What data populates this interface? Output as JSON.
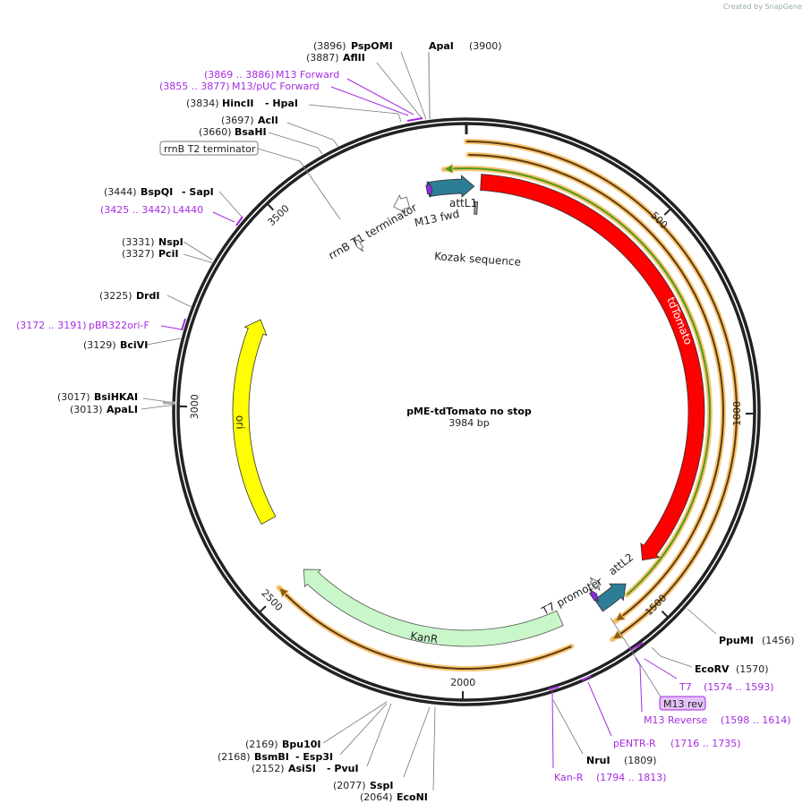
{
  "credit": "Created by SnapGene",
  "plasmid": {
    "name": "pME-tdTomato no stop",
    "length_label": "3984 bp",
    "length": 3984
  },
  "ticks": [
    {
      "bp": 500,
      "label": "500"
    },
    {
      "bp": 1000,
      "label": "1000"
    },
    {
      "bp": 1500,
      "label": "1500"
    },
    {
      "bp": 2000,
      "label": "2000"
    },
    {
      "bp": 2500,
      "label": "2500"
    },
    {
      "bp": 3000,
      "label": "3000"
    },
    {
      "bp": 3500,
      "label": "3500"
    }
  ],
  "features": [
    {
      "name": "tdTomato",
      "start": 40,
      "end": 1440,
      "dir": 1,
      "color": "#ff0000"
    },
    {
      "name": "attL1",
      "start": 3876,
      "end": 22,
      "dir": 1,
      "color": "#2e7d96"
    },
    {
      "name": "attL2",
      "start": 1518,
      "end": 1612,
      "dir": -1,
      "color": "#2e7d96"
    },
    {
      "name": "KanR",
      "start": 1722,
      "end": 2500,
      "dir": 1,
      "color": "#c9f7c9"
    },
    {
      "name": "ori",
      "start": 2670,
      "end": 3255,
      "dir": 1,
      "color": "#ffff00"
    },
    {
      "name": "rrnB T1 terminator",
      "start": 3768,
      "end": 3812,
      "dir": -1,
      "color": "#ffffff"
    },
    {
      "name": "rrnB T2 terminator",
      "start": 3612,
      "end": 3628,
      "dir": -1,
      "color": "#ffffff"
    },
    {
      "name": "M13 fwd",
      "start": 3872,
      "end": 3888,
      "dir": 1,
      "color": "#8e2be2"
    },
    {
      "name": "T7 promoter",
      "start": 1574,
      "end": 1593,
      "dir": -1,
      "color": "#ffffff"
    },
    {
      "name": "M13 rev",
      "start": 1598,
      "end": 1614,
      "dir": -1,
      "color": "#8e2be2"
    },
    {
      "name": "Kozak sequence",
      "start": 25,
      "end": 34,
      "dir": 0,
      "color": "#999999"
    }
  ],
  "tracks": [
    {
      "start": 0,
      "end": 1630,
      "dir": 1,
      "color": "#000000"
    },
    {
      "start": 5,
      "end": 1600,
      "dir": 1,
      "color": "#000000"
    },
    {
      "start": 3925,
      "end": 1535,
      "dir": -1,
      "color": "#4a9a1a"
    },
    {
      "start": 1725,
      "end": 2510,
      "dir": 1,
      "color": "#000000"
    }
  ],
  "sites": [
    {
      "pos": "(3896)",
      "name": "PspOMI"
    },
    {
      "pos": "(3900)",
      "name": "ApaI"
    },
    {
      "pos": "(3887)",
      "name": "AflII"
    },
    {
      "pos": "(3834)",
      "name": "HincII",
      "name2": "- HpaI"
    },
    {
      "pos": "(3697)",
      "name": "AclI"
    },
    {
      "pos": "(3660)",
      "name": "BsaHI"
    },
    {
      "pos": "(3444)",
      "name": "BspQI",
      "name2": "- SapI"
    },
    {
      "pos": "(3331)",
      "name": "NspI"
    },
    {
      "pos": "(3327)",
      "name": "PciI"
    },
    {
      "pos": "(3225)",
      "name": "DrdI"
    },
    {
      "pos": "(3129)",
      "name": "BciVI"
    },
    {
      "pos": "(3017)",
      "name": "BsiHKAI"
    },
    {
      "pos": "(3013)",
      "name": "ApaLI"
    },
    {
      "pos": "(1456)",
      "name": "PpuMI"
    },
    {
      "pos": "(1570)",
      "name": "EcoRV"
    },
    {
      "pos": "(1809)",
      "name": "NruI"
    },
    {
      "pos": "(2169)",
      "name": "Bpu10I"
    },
    {
      "pos": "(2168)",
      "name": "BsmBI",
      "name2": "- Esp3I"
    },
    {
      "pos": "(2152)",
      "name": "AsiSI",
      "name2": "- PvuI"
    },
    {
      "pos": "(2077)",
      "name": "SspI"
    },
    {
      "pos": "(2064)",
      "name": "EcoNI"
    }
  ],
  "primers": [
    {
      "range": "(3869 .. 3886)",
      "name": "M13 Forward"
    },
    {
      "range": "(3855 .. 3877)",
      "name": "M13/pUC Forward"
    },
    {
      "range": "(3425 .. 3442)",
      "name": "L4440"
    },
    {
      "range": "(3172 .. 3191)",
      "name": "pBR322ori-F"
    },
    {
      "range": "(1574 .. 1593)",
      "name": "T7"
    },
    {
      "range": "(1598 .. 1614)",
      "name": "M13 Reverse"
    },
    {
      "range": "(1716 .. 1735)",
      "name": "pENTR-R"
    },
    {
      "range": "(1794 .. 1813)",
      "name": "Kan-R"
    }
  ],
  "boxed": {
    "rrnb_t2": "rrnB T2 terminator",
    "m13rev": "M13 rev"
  }
}
